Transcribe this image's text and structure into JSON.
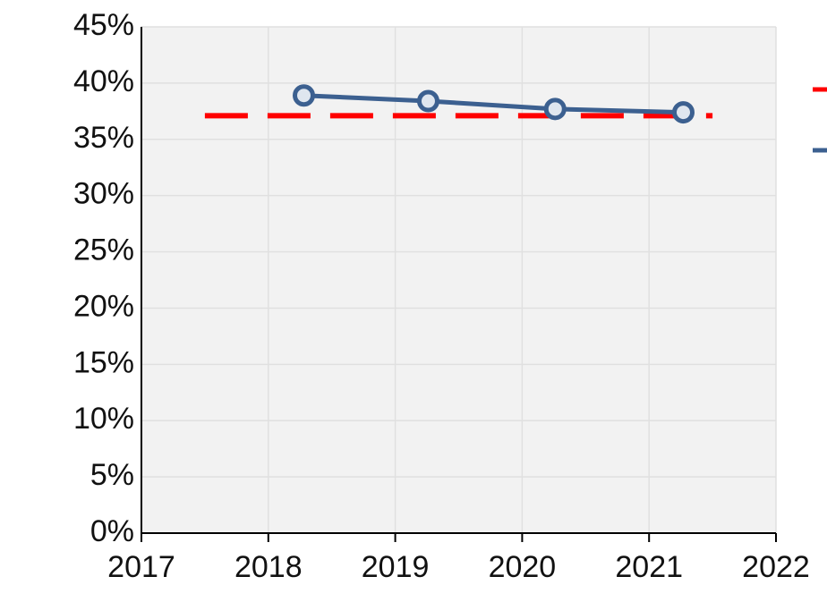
{
  "chart_data": {
    "type": "line",
    "xlim": [
      2017,
      2022
    ],
    "xticks": [
      2017,
      2018,
      2019,
      2020,
      2021,
      2022
    ],
    "ylim": [
      0,
      45
    ],
    "yticks": [
      {
        "value": 0,
        "label": "0%"
      },
      {
        "value": 5,
        "label": "5%"
      },
      {
        "value": 10,
        "label": "10%"
      },
      {
        "value": 15,
        "label": "15%"
      },
      {
        "value": 20,
        "label": "20%"
      },
      {
        "value": 25,
        "label": "25%"
      },
      {
        "value": 30,
        "label": "30%"
      },
      {
        "value": 35,
        "label": "35%"
      },
      {
        "value": 40,
        "label": "40%"
      },
      {
        "value": 45,
        "label": "45%"
      }
    ],
    "grid": true,
    "series": [
      {
        "color": "#ff0000",
        "dashed": true,
        "x": [
          2017.5,
          2021.5
        ],
        "values": [
          37.1,
          37.1
        ]
      },
      {
        "color": "#3c6090",
        "markers": true,
        "x": [
          2018.28,
          2019.26,
          2020.26,
          2021.27
        ],
        "values": [
          38.9,
          38.4,
          37.7,
          37.4
        ]
      }
    ]
  }
}
